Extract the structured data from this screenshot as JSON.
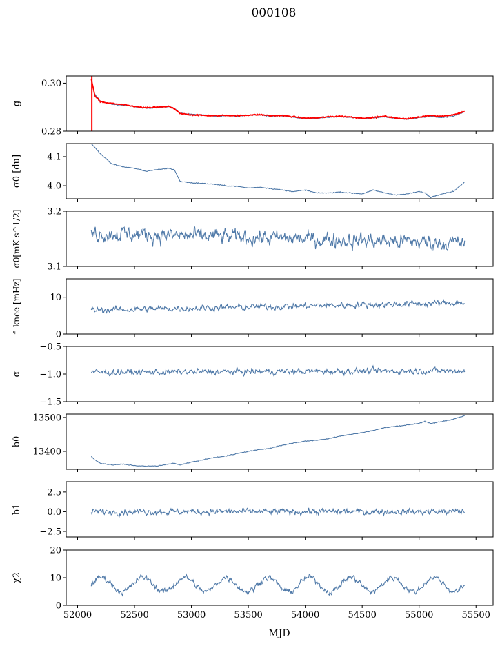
{
  "figure": {
    "title": "000108",
    "xlabel": "MJD",
    "xlim": [
      51900,
      55650
    ],
    "xticks": [
      52000,
      52500,
      53000,
      53500,
      54000,
      54500,
      55000,
      55500
    ]
  },
  "colors": {
    "series": "#4f79a8",
    "fit": "#ff0000"
  },
  "chart_data": [
    {
      "type": "line",
      "ylabel": "g",
      "ylim": [
        0.28,
        0.303
      ],
      "yticks": [
        0.28,
        0.3
      ],
      "ytick_labels": [
        "0.28",
        "0.30"
      ],
      "series": [
        {
          "x": [
            52120,
            52150,
            52200,
            52300,
            52400,
            52500,
            52600,
            52700,
            52800,
            52850,
            52900,
            53000,
            53100,
            53200,
            53300,
            53400,
            53500,
            53600,
            53700,
            53800,
            53900,
            54000,
            54100,
            54200,
            54300,
            54400,
            54500,
            54600,
            54700,
            54800,
            54900,
            55000,
            55100,
            55200,
            55300,
            55400
          ],
          "y": [
            0.301,
            0.2955,
            0.2925,
            0.2912,
            0.2908,
            0.2902,
            0.2895,
            0.2898,
            0.2902,
            0.2895,
            0.2875,
            0.287,
            0.2868,
            0.2862,
            0.2865,
            0.2862,
            0.2866,
            0.2868,
            0.2862,
            0.2864,
            0.2858,
            0.2852,
            0.2853,
            0.2858,
            0.286,
            0.2858,
            0.2852,
            0.2855,
            0.286,
            0.2852,
            0.285,
            0.2856,
            0.2862,
            0.2856,
            0.2862,
            0.288
          ]
        }
      ],
      "fit": {
        "x": [
          52120,
          52150,
          52200,
          52300,
          52400,
          52500,
          52600,
          52700,
          52800,
          52850,
          52900,
          53000,
          53100,
          53200,
          53300,
          53400,
          53500,
          53600,
          53700,
          53800,
          53900,
          54000,
          54100,
          54200,
          54300,
          54400,
          54500,
          54600,
          54700,
          54800,
          54900,
          55000,
          55100,
          55200,
          55300,
          55400
        ],
        "y": [
          0.302,
          0.295,
          0.2922,
          0.2915,
          0.291,
          0.2903,
          0.2897,
          0.29,
          0.2903,
          0.2893,
          0.2873,
          0.2868,
          0.2866,
          0.2864,
          0.2866,
          0.2864,
          0.2867,
          0.2869,
          0.2864,
          0.2865,
          0.286,
          0.2854,
          0.2855,
          0.286,
          0.2862,
          0.2859,
          0.2854,
          0.2857,
          0.2862,
          0.2854,
          0.2852,
          0.2858,
          0.2866,
          0.2862,
          0.2868,
          0.2882
        ]
      }
    },
    {
      "type": "line",
      "ylabel": "σ0 [du]",
      "ylim": [
        3.955,
        4.145
      ],
      "yticks": [
        4.0,
        4.1
      ],
      "ytick_labels": [
        "4.0",
        "4.1"
      ],
      "series": [
        {
          "x": [
            52120,
            52200,
            52300,
            52400,
            52500,
            52600,
            52700,
            52800,
            52850,
            52900,
            53000,
            53100,
            53200,
            53300,
            53400,
            53500,
            53600,
            53700,
            53800,
            53900,
            54000,
            54100,
            54200,
            54300,
            54400,
            54500,
            54600,
            54700,
            54800,
            54900,
            55000,
            55050,
            55100,
            55200,
            55300,
            55400
          ],
          "y": [
            4.145,
            4.11,
            4.075,
            4.065,
            4.06,
            4.05,
            4.055,
            4.06,
            4.055,
            4.015,
            4.01,
            4.008,
            4.005,
            4.0,
            3.998,
            3.992,
            3.995,
            3.99,
            3.985,
            3.98,
            3.985,
            3.975,
            3.975,
            3.978,
            3.975,
            3.972,
            3.985,
            3.975,
            3.968,
            3.972,
            3.98,
            3.975,
            3.96,
            3.972,
            3.98,
            4.012
          ]
        }
      ]
    },
    {
      "type": "line",
      "ylabel": "σ0[mK s^1/2]",
      "ylim": [
        3.1,
        3.2
      ],
      "yticks": [
        3.1,
        3.2
      ],
      "ytick_labels": [
        "3.1",
        "3.2"
      ],
      "series": [
        {
          "x": [
            52120,
            55400
          ],
          "mean": 3.16,
          "trend": -0.018,
          "noise": 0.012
        }
      ]
    },
    {
      "type": "line",
      "ylabel": "f_knee [mHz]",
      "ylim": [
        0,
        15
      ],
      "yticks": [
        0,
        10
      ],
      "ytick_labels": [
        "0",
        "10"
      ],
      "series": [
        {
          "x": [
            52120,
            55400
          ],
          "mean": 6.5,
          "trend": 2.0,
          "noise": 0.7
        }
      ]
    },
    {
      "type": "line",
      "ylabel": "α",
      "ylim": [
        -1.5,
        -0.5
      ],
      "yticks": [
        -1.5,
        -1.0,
        -0.5
      ],
      "ytick_labels": [
        "−1.5",
        "−1.0",
        "−0.5"
      ],
      "series": [
        {
          "x": [
            52120,
            55400
          ],
          "mean": -0.97,
          "trend": 0.03,
          "noise": 0.045
        }
      ]
    },
    {
      "type": "line",
      "ylabel": "b0",
      "ylim": [
        13347,
        13510
      ],
      "yticks": [
        13400,
        13500
      ],
      "ytick_labels": [
        "13400",
        "13500"
      ],
      "series": [
        {
          "x": [
            52120,
            52150,
            52200,
            52300,
            52400,
            52500,
            52600,
            52700,
            52800,
            52850,
            52900,
            53000,
            53100,
            53200,
            53300,
            53400,
            53500,
            53600,
            53700,
            53800,
            53900,
            54000,
            54100,
            54200,
            54300,
            54400,
            54500,
            54600,
            54700,
            54800,
            54900,
            55000,
            55050,
            55100,
            55200,
            55300,
            55400
          ],
          "y": [
            13385,
            13375,
            13365,
            13360,
            13362,
            13358,
            13356,
            13357,
            13362,
            13365,
            13360,
            13368,
            13375,
            13382,
            13386,
            13393,
            13400,
            13405,
            13410,
            13418,
            13425,
            13430,
            13433,
            13437,
            13445,
            13450,
            13455,
            13462,
            13470,
            13474,
            13478,
            13483,
            13488,
            13482,
            13488,
            13495,
            13505
          ]
        }
      ]
    },
    {
      "type": "line",
      "ylabel": "b1",
      "ylim": [
        -3.2,
        3.8
      ],
      "yticks": [
        -2.5,
        0.0,
        2.5
      ],
      "ytick_labels": [
        "−2.5",
        "0.0",
        "2.5"
      ],
      "series": [
        {
          "x": [
            52120,
            55400
          ],
          "mean": 0.0,
          "trend": 0.0,
          "noise": 0.32
        }
      ]
    },
    {
      "type": "line",
      "ylabel": "χ2",
      "ylim": [
        0,
        20
      ],
      "yticks": [
        0,
        10,
        20
      ],
      "ytick_labels": [
        "0",
        "10",
        "20"
      ],
      "series": [
        {
          "x": [
            52120,
            55400
          ],
          "mean": 7.5,
          "trend": 0.0,
          "noise": 0.9,
          "amplitude": 2.6,
          "period": 365
        }
      ]
    }
  ]
}
